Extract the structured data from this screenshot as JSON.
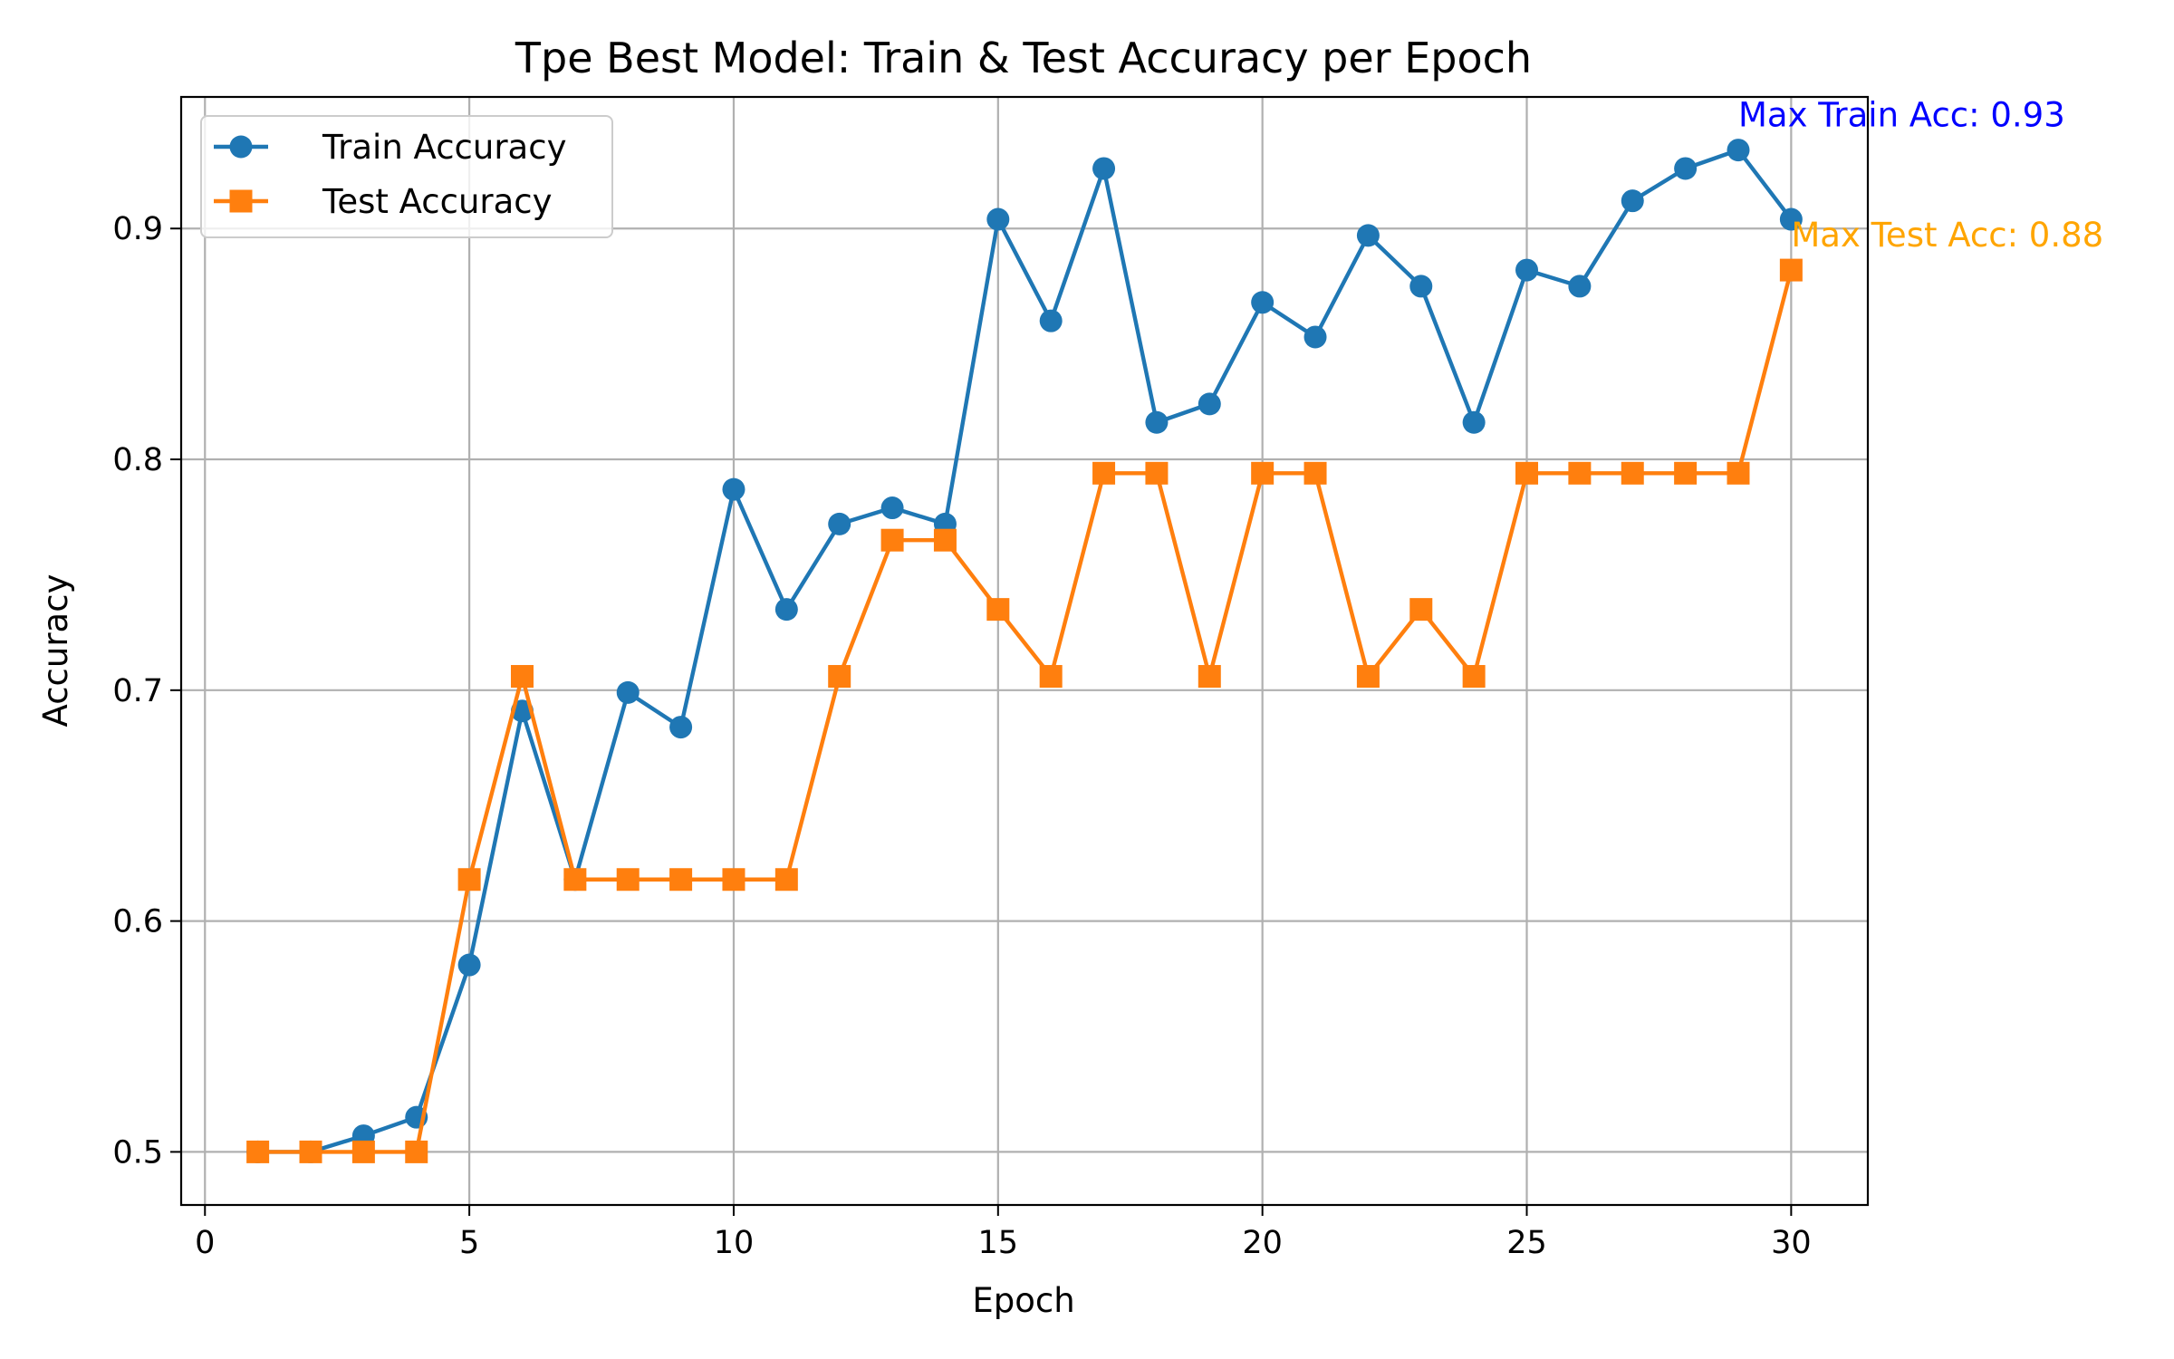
{
  "chart_data": {
    "type": "line",
    "title": "Tpe Best Model: Train & Test Accuracy per Epoch",
    "xlabel": "Epoch",
    "ylabel": "Accuracy",
    "xlim": [
      -0.45,
      31.45
    ],
    "ylim": [
      0.477,
      0.957
    ],
    "xticks": [
      0,
      5,
      10,
      15,
      20,
      25,
      30
    ],
    "xtick_labels": [
      "0",
      "5",
      "10",
      "15",
      "20",
      "25",
      "30"
    ],
    "yticks": [
      0.5,
      0.6,
      0.7,
      0.8,
      0.9
    ],
    "ytick_labels": [
      "0.5",
      "0.6",
      "0.7",
      "0.8",
      "0.9"
    ],
    "grid": true,
    "legend_position": "top-left",
    "x": [
      1,
      2,
      3,
      4,
      5,
      6,
      7,
      8,
      9,
      10,
      11,
      12,
      13,
      14,
      15,
      16,
      17,
      18,
      19,
      20,
      21,
      22,
      23,
      24,
      25,
      26,
      27,
      28,
      29,
      30
    ],
    "series": [
      {
        "name": "Train Accuracy",
        "color": "#1f77b4",
        "marker": "circle",
        "values": [
          0.5,
          0.5,
          0.507,
          0.515,
          0.581,
          0.691,
          0.618,
          0.699,
          0.684,
          0.787,
          0.735,
          0.772,
          0.779,
          0.772,
          0.904,
          0.86,
          0.926,
          0.816,
          0.824,
          0.868,
          0.853,
          0.897,
          0.875,
          0.816,
          0.882,
          0.875,
          0.912,
          0.926,
          0.934,
          0.904
        ]
      },
      {
        "name": "Test Accuracy",
        "color": "#ff7f0e",
        "marker": "square",
        "values": [
          0.5,
          0.5,
          0.5,
          0.5,
          0.618,
          0.706,
          0.618,
          0.618,
          0.618,
          0.618,
          0.618,
          0.706,
          0.765,
          0.765,
          0.735,
          0.706,
          0.794,
          0.794,
          0.706,
          0.794,
          0.794,
          0.706,
          0.735,
          0.706,
          0.794,
          0.794,
          0.794,
          0.794,
          0.794,
          0.882
        ]
      }
    ],
    "annotations": [
      {
        "text": "Max Train Acc: 0.93",
        "x": 29,
        "y": 0.934,
        "color": "#0000ff"
      },
      {
        "text": "Max Test Acc: 0.88",
        "x": 30,
        "y": 0.882,
        "color": "#ffa500"
      }
    ]
  }
}
